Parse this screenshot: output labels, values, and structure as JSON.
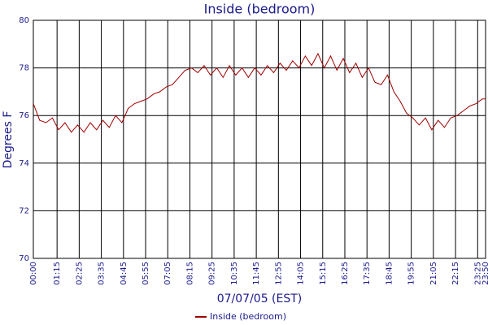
{
  "chart_data": {
    "type": "line",
    "title": "Inside (bedroom)",
    "xlabel": "07/07/05 (EST)",
    "ylabel": "Degrees F",
    "ylim": [
      70,
      80
    ],
    "yticks": [
      70,
      72,
      74,
      76,
      78,
      80
    ],
    "xlim": [
      0,
      1430
    ],
    "xticks": [
      {
        "value": 0,
        "label": "00:00"
      },
      {
        "value": 75,
        "label": "01:15"
      },
      {
        "value": 145,
        "label": "02:25"
      },
      {
        "value": 215,
        "label": "03:35"
      },
      {
        "value": 285,
        "label": "04:45"
      },
      {
        "value": 355,
        "label": "05:55"
      },
      {
        "value": 425,
        "label": "07:05"
      },
      {
        "value": 495,
        "label": "08:15"
      },
      {
        "value": 565,
        "label": "09:25"
      },
      {
        "value": 635,
        "label": "10:35"
      },
      {
        "value": 705,
        "label": "11:45"
      },
      {
        "value": 775,
        "label": "12:55"
      },
      {
        "value": 845,
        "label": "14:05"
      },
      {
        "value": 915,
        "label": "15:15"
      },
      {
        "value": 985,
        "label": "16:25"
      },
      {
        "value": 1055,
        "label": "17:35"
      },
      {
        "value": 1125,
        "label": "18:45"
      },
      {
        "value": 1195,
        "label": "19:55"
      },
      {
        "value": 1265,
        "label": "21:05"
      },
      {
        "value": 1335,
        "label": "22:15"
      },
      {
        "value": 1405,
        "label": "23:25"
      },
      {
        "value": 1430,
        "label": "23:50"
      }
    ],
    "grid": true,
    "series": [
      {
        "name": "Inside (bedroom)",
        "color": "#a00000",
        "x": [
          0,
          20,
          40,
          60,
          80,
          100,
          120,
          140,
          160,
          180,
          200,
          220,
          240,
          260,
          280,
          300,
          320,
          340,
          360,
          380,
          400,
          420,
          440,
          460,
          480,
          500,
          520,
          540,
          560,
          580,
          600,
          620,
          640,
          660,
          680,
          700,
          720,
          740,
          760,
          780,
          800,
          820,
          840,
          860,
          880,
          900,
          920,
          940,
          960,
          980,
          1000,
          1020,
          1040,
          1060,
          1080,
          1100,
          1120,
          1140,
          1160,
          1180,
          1200,
          1220,
          1240,
          1260,
          1280,
          1300,
          1320,
          1340,
          1360,
          1380,
          1400,
          1420,
          1430
        ],
        "values": [
          76.5,
          75.8,
          75.7,
          75.9,
          75.4,
          75.7,
          75.3,
          75.6,
          75.3,
          75.7,
          75.4,
          75.8,
          75.5,
          76.0,
          75.7,
          76.3,
          76.5,
          76.6,
          76.7,
          76.9,
          77.0,
          77.2,
          77.3,
          77.6,
          77.9,
          78.0,
          77.8,
          78.1,
          77.7,
          78.0,
          77.6,
          78.1,
          77.7,
          78.0,
          77.6,
          78.0,
          77.7,
          78.1,
          77.8,
          78.2,
          77.9,
          78.3,
          78.0,
          78.5,
          78.1,
          78.6,
          78.0,
          78.5,
          77.9,
          78.4,
          77.8,
          78.2,
          77.6,
          78.0,
          77.4,
          77.3,
          77.7,
          77.0,
          76.6,
          76.1,
          75.9,
          75.6,
          75.9,
          75.4,
          75.8,
          75.5,
          75.9,
          76.0,
          76.2,
          76.4,
          76.5,
          76.7,
          76.7
        ]
      }
    ]
  }
}
